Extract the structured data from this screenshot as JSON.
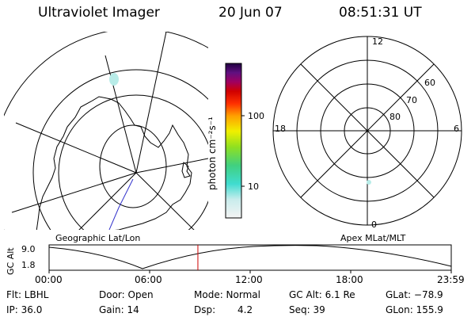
{
  "header": {
    "instrument": "Ultraviolet Imager",
    "date": "20 Jun 07",
    "time": "08:51:31 UT"
  },
  "left_map": {
    "label": "Geographic Lat/Lon"
  },
  "right_map": {
    "label": "Apex MLat/MLT",
    "mlt_labels": {
      "top": "12",
      "left": "18",
      "right": "6",
      "bottom": "0"
    },
    "lat_labels": [
      "60",
      "70",
      "80"
    ]
  },
  "colorbar": {
    "unit_label": "photon cm⁻²s⁻¹",
    "ticks": [
      "100",
      "10"
    ]
  },
  "orbit_plot": {
    "ylabel": "GC Alt",
    "ymax": "9.0",
    "ymin": "1.8",
    "x_ticks": [
      "00:00",
      "06:00",
      "12:00",
      "18:00",
      "23:59"
    ],
    "current_time_marker_fraction": 0.37
  },
  "info": {
    "flt": "Flt: LBHL",
    "ip": "IP: 36.0",
    "door": "Door: Open",
    "gain": "Gain: 14",
    "mode": "Mode: Normal",
    "dsp_label": "Dsp:",
    "dsp_value": "4.2",
    "gc_alt": "GC Alt: 6.1 Re",
    "seq": "Seq: 39",
    "glat": "GLat: −78.9",
    "glon": "GLon: 155.9"
  },
  "colors": {
    "marker": "#cc0000",
    "ink": "#000000"
  }
}
